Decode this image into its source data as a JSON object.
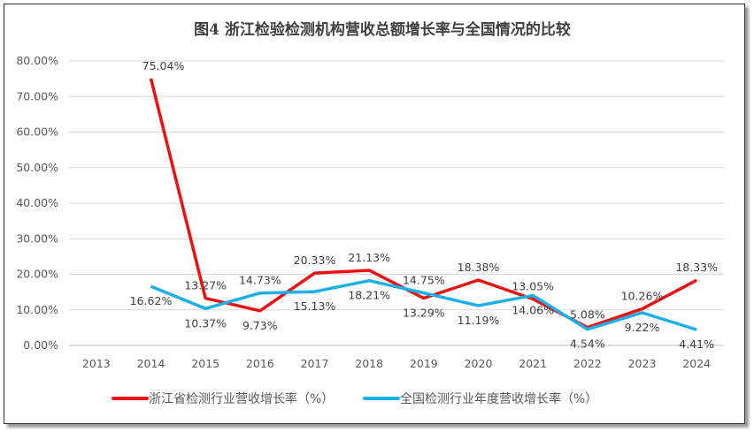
{
  "chart_data": {
    "type": "line",
    "title": "图4  浙江检验检测机构营收总额增长率与全国情况的比较",
    "categories": [
      "2013",
      "2014",
      "2015",
      "2016",
      "2017",
      "2018",
      "2019",
      "2020",
      "2021",
      "2022",
      "2023",
      "2024"
    ],
    "ylim": [
      0,
      80
    ],
    "yticks": [
      "0.00%",
      "10.00%",
      "20.00%",
      "30.00%",
      "40.00%",
      "50.00%",
      "60.00%",
      "70.00%",
      "80.00%"
    ],
    "grid": true,
    "legend": "bottom",
    "series": [
      {
        "name": "浙江省检测行业营收增长率（%）",
        "color": "#ee1111",
        "values": [
          null,
          75.04,
          13.27,
          9.73,
          20.33,
          21.13,
          13.29,
          18.38,
          13.05,
          5.08,
          10.26,
          18.33
        ],
        "labels": [
          "",
          "75.04%",
          "13.27%",
          "9.73%",
          "20.33%",
          "21.13%",
          "13.29%",
          "18.38%",
          "13.05%",
          "5.08%",
          "10.26%",
          "18.33%"
        ]
      },
      {
        "name": "全国检测行业年度营收增长率（%）",
        "color": "#1ab0e8",
        "values": [
          null,
          16.62,
          10.37,
          14.73,
          15.13,
          18.21,
          14.75,
          11.19,
          14.06,
          4.54,
          9.22,
          4.41
        ],
        "labels": [
          "",
          "16.62%",
          "10.37%",
          "14.73%",
          "15.13%",
          "18.21%",
          "14.75%",
          "11.19%",
          "14.06%",
          "4.54%",
          "9.22%",
          "4.41%"
        ]
      }
    ]
  }
}
